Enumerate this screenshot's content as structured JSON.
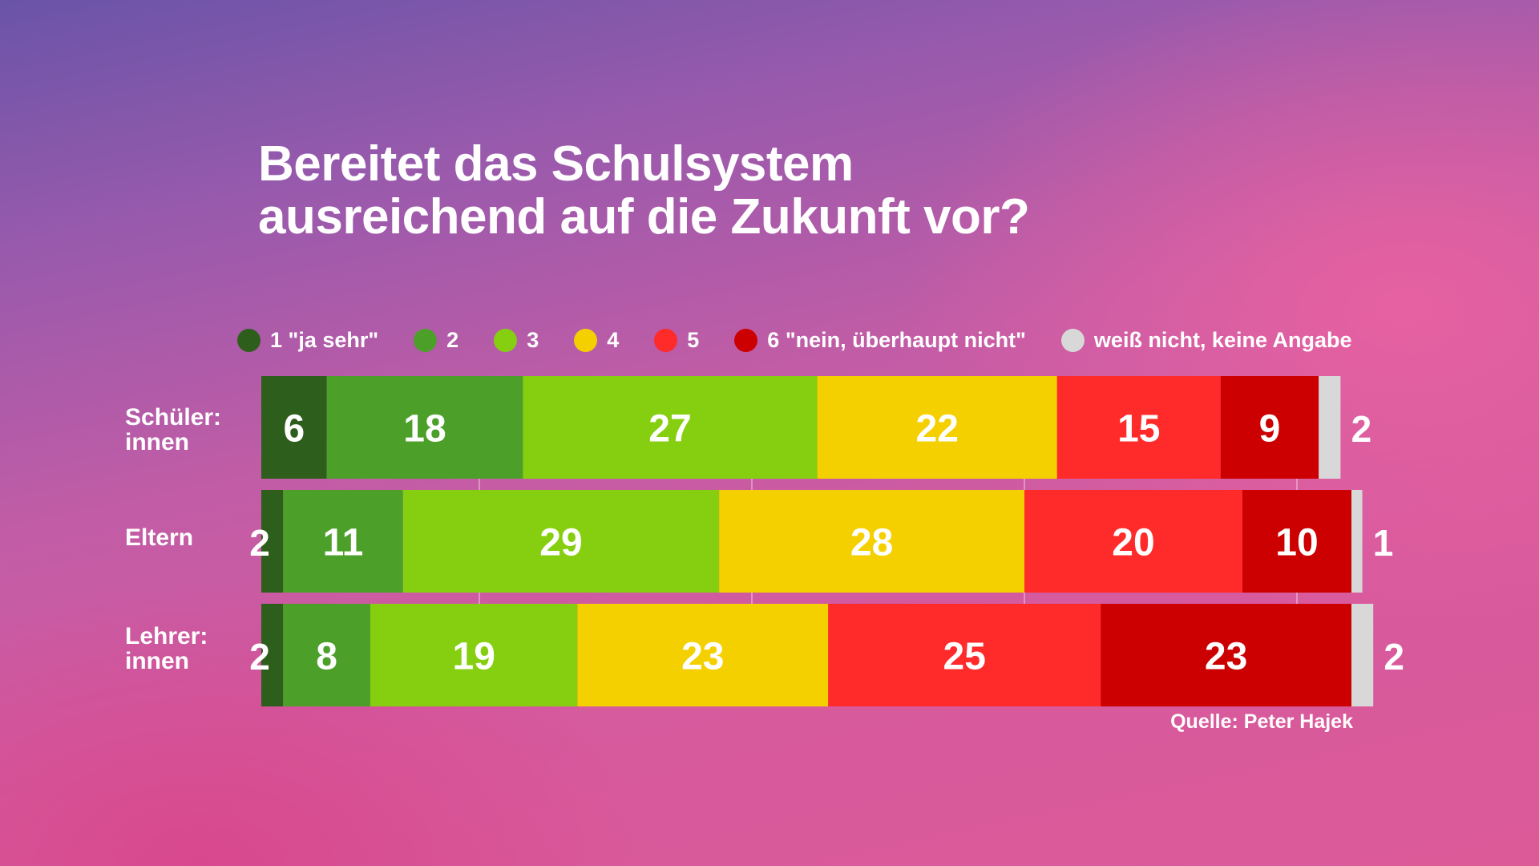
{
  "title_lines": [
    "Bereitet das Schulsystem",
    "ausreichend auf die Zukunft vor?"
  ],
  "source": "Quelle: Peter Hajek",
  "legend": [
    {
      "label": "1 \"ja sehr\"",
      "color": "#2e5e1c"
    },
    {
      "label": "2",
      "color": "#4ca02a"
    },
    {
      "label": "3",
      "color": "#86cf10"
    },
    {
      "label": "4",
      "color": "#f5d000"
    },
    {
      "label": "5",
      "color": "#ff2a2a"
    },
    {
      "label": "6 \"nein, überhaupt nicht\"",
      "color": "#cc0000"
    },
    {
      "label": "weiß nicht, keine Angabe",
      "color": "#d8d8d8"
    }
  ],
  "chart_data": {
    "type": "bar",
    "orientation": "horizontal",
    "stacked": true,
    "unit": "%",
    "categories": [
      "Schüler: innen",
      "Eltern",
      "Lehrer: innen"
    ],
    "category_lines": [
      [
        "Schüler:",
        "innen"
      ],
      [
        "Eltern"
      ],
      [
        "Lehrer:",
        "innen"
      ]
    ],
    "series": [
      {
        "name": "1 \"ja sehr\"",
        "values": [
          6,
          2,
          2
        ]
      },
      {
        "name": "2",
        "values": [
          18,
          11,
          8
        ]
      },
      {
        "name": "3",
        "values": [
          27,
          29,
          19
        ]
      },
      {
        "name": "4",
        "values": [
          22,
          28,
          23
        ]
      },
      {
        "name": "5",
        "values": [
          15,
          20,
          25
        ]
      },
      {
        "name": "6 \"nein, überhaupt nicht\"",
        "values": [
          9,
          10,
          23
        ]
      },
      {
        "name": "weiß nicht, keine Angabe",
        "values": [
          2,
          1,
          2
        ]
      }
    ],
    "xlim": [
      0,
      100
    ],
    "legend_position": "top"
  }
}
